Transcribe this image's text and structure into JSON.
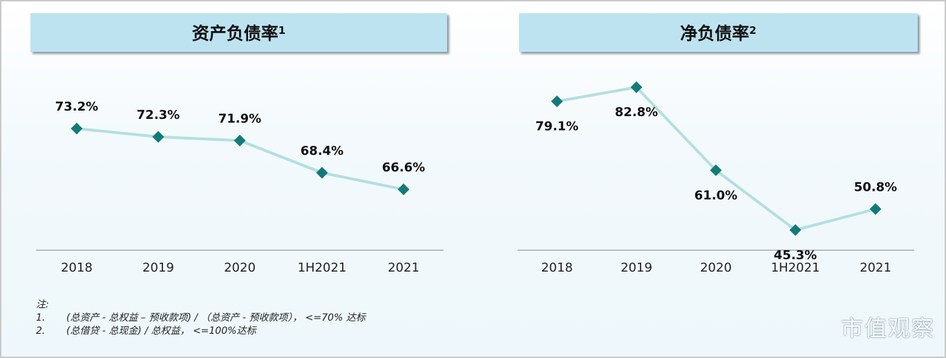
{
  "chart_data": [
    {
      "type": "line",
      "title": "资产负债率",
      "title_sup": "1",
      "categories": [
        "2018",
        "2019",
        "2020",
        "1H2021",
        "2021"
      ],
      "values": [
        73.2,
        72.3,
        71.9,
        68.4,
        66.6
      ],
      "labels": [
        "73.2%",
        "72.3%",
        "71.9%",
        "68.4%",
        "66.6%"
      ],
      "label_pos": [
        "above",
        "above",
        "above",
        "above",
        "above"
      ],
      "ylim": [
        60,
        79.5
      ],
      "grid": false,
      "line_color": "#b3dfe0",
      "marker_color": "#137a7a",
      "marker": "diamond"
    },
    {
      "type": "line",
      "title": "净负债率",
      "title_sup": "2",
      "categories": [
        "2018",
        "2019",
        "2020",
        "1H2021",
        "2021"
      ],
      "values": [
        79.1,
        82.8,
        61.0,
        45.3,
        50.8
      ],
      "labels": [
        "79.1%",
        "82.8%",
        "61.0%",
        "45.3%",
        "50.8%"
      ],
      "label_pos": [
        "below",
        "below",
        "below",
        "below",
        "above"
      ],
      "ylim": [
        40,
        87.2
      ],
      "grid": false,
      "line_color": "#b3dfe0",
      "marker_color": "#137a7a",
      "marker": "diamond"
    }
  ],
  "notes": {
    "heading": "注:",
    "items": [
      {
        "num": "1.",
        "text": "(总资产 - 总权益 – 预收款项) / （总资产 - 预收款项）， <=70% 达标"
      },
      {
        "num": "2.",
        "text": "(总借贷  - 总现金) / 总权益， <=100%达标"
      }
    ]
  },
  "watermark": "市值观察"
}
